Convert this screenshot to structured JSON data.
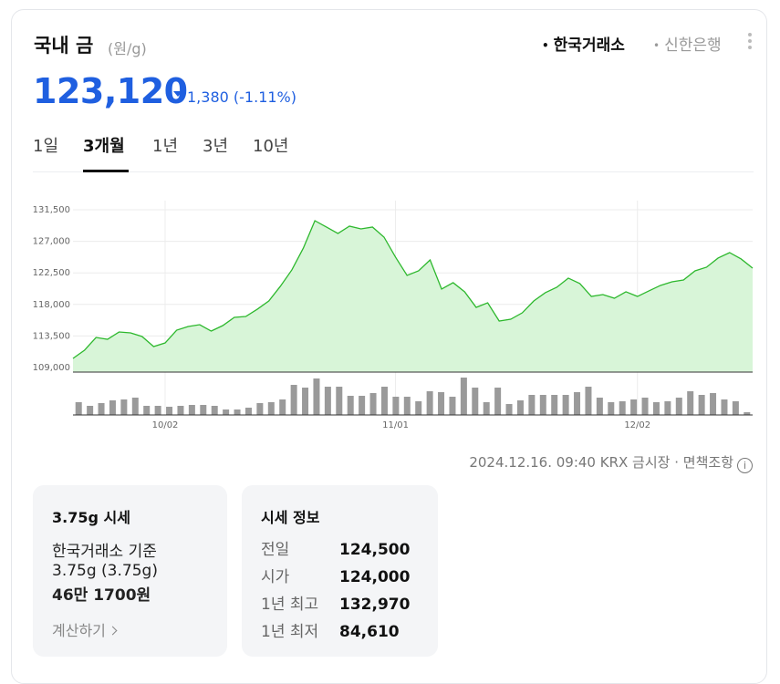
{
  "header": {
    "title": "국내 금",
    "unit": "(원/g)",
    "sources": [
      "한국거래소",
      "신한은행"
    ],
    "active_source": 0,
    "price": "123,120",
    "change": "1,380",
    "change_pct": "(-1.11%)"
  },
  "tabs": [
    "1일",
    "3개월",
    "1년",
    "3년",
    "10년"
  ],
  "active_tab": 1,
  "chart_data": {
    "type": "line",
    "color": "#2db82d",
    "fill": "#d8f5d8",
    "volume_color": "#9a9a9a",
    "grid": true,
    "categories": [
      null,
      null,
      null,
      null,
      null,
      null,
      null,
      null,
      "10/02",
      null,
      null,
      null,
      null,
      null,
      null,
      null,
      null,
      null,
      null,
      null,
      null,
      null,
      null,
      null,
      null,
      null,
      null,
      null,
      "11/01",
      null,
      null,
      null,
      null,
      null,
      null,
      null,
      null,
      null,
      null,
      null,
      null,
      null,
      null,
      null,
      null,
      null,
      null,
      null,
      null,
      "12/02",
      null,
      null,
      null,
      null,
      null,
      null,
      null,
      null,
      null,
      null
    ],
    "values": [
      110300,
      111470,
      113290,
      113030,
      114070,
      113940,
      113420,
      111990,
      112510,
      114330,
      114850,
      115110,
      114200,
      114980,
      116150,
      116280,
      117320,
      118490,
      120580,
      122920,
      126040,
      129940,
      129030,
      128120,
      129160,
      128770,
      129030,
      127600,
      124740,
      122140,
      122790,
      124350,
      120190,
      121100,
      119800,
      117580,
      118230,
      115630,
      115890,
      116800,
      118490,
      119670,
      120450,
      121750,
      120970,
      119140,
      119400,
      118880,
      119800,
      119140,
      119930,
      120710,
      121230,
      121490,
      122790,
      123310,
      124610,
      125390,
      124480,
      123180
    ],
    "volumes": [
      14,
      10,
      13,
      16,
      17,
      19,
      10,
      10,
      9,
      10,
      11,
      11,
      10,
      6,
      6,
      8,
      13,
      14,
      17,
      33,
      30,
      40,
      31,
      31,
      21,
      21,
      24,
      31,
      20,
      20,
      15,
      26,
      25,
      20,
      41,
      30,
      14,
      30,
      12,
      16,
      22,
      22,
      22,
      22,
      25,
      31,
      19,
      14,
      15,
      17,
      19,
      14,
      15,
      19,
      26,
      22,
      24,
      17,
      15,
      3
    ],
    "vlim": [
      0,
      45
    ],
    "ylim": [
      108350,
      132800
    ],
    "yticks": [
      {
        "value": 109000,
        "label": "109,000"
      },
      {
        "value": 113500,
        "label": "113,500"
      },
      {
        "value": 118000,
        "label": "118,000"
      },
      {
        "value": 122500,
        "label": "122,500"
      },
      {
        "value": 127000,
        "label": "127,000"
      },
      {
        "value": 131500,
        "label": "131,500"
      }
    ]
  },
  "footer": {
    "timestamp": "2024.12.16. 09:40 KRX 금시장",
    "separator": "·",
    "disclaimer": "면책조항",
    "info": "i"
  },
  "cards": [
    {
      "title": "3.75g 시세",
      "lines": [
        "한국거래소 기준",
        "3.75g (3.75g)",
        "46만 1700원"
      ],
      "link": "계산하기"
    },
    {
      "title": "시세 정보",
      "rows": [
        [
          "전일",
          "124,500"
        ],
        [
          "시가",
          "124,000"
        ],
        [
          "1년 최고",
          "132,970"
        ],
        [
          "1년 최저",
          "84,610"
        ]
      ]
    }
  ]
}
